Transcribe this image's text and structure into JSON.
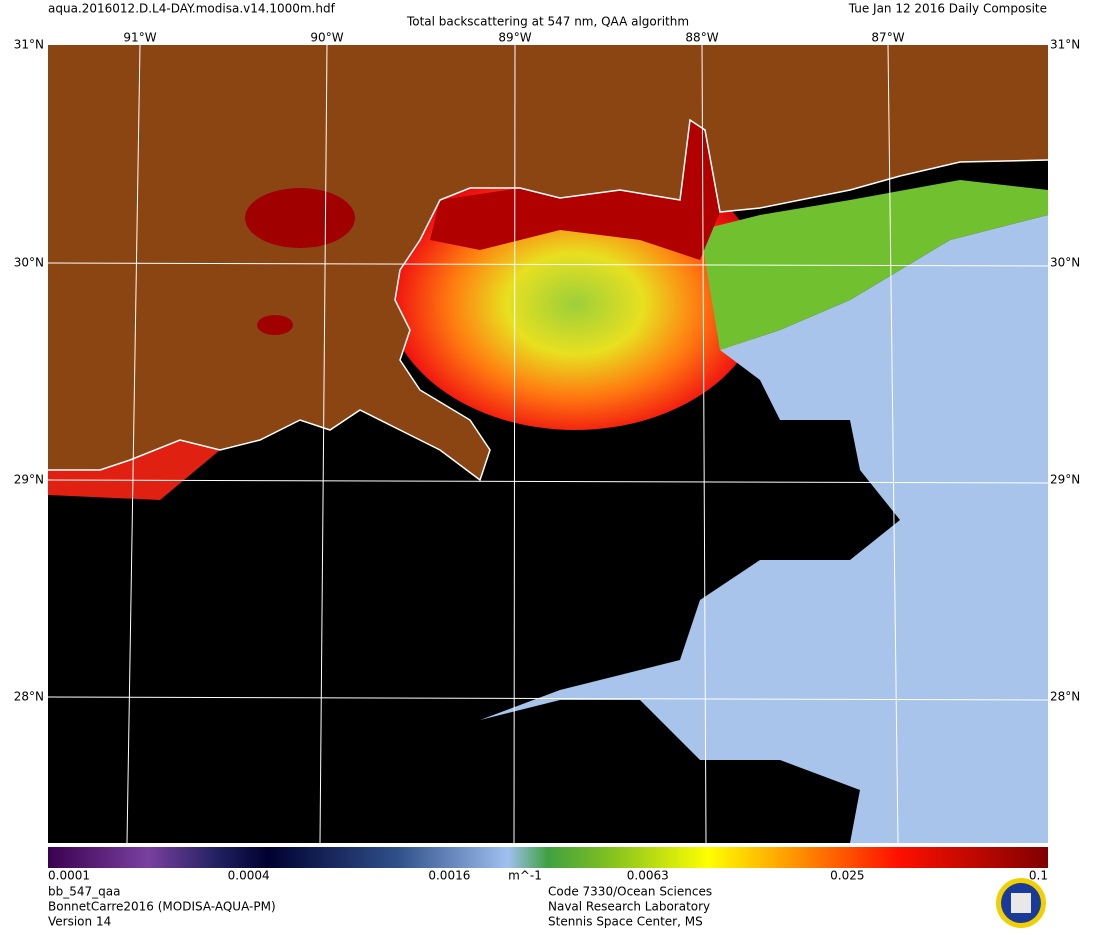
{
  "header": {
    "file": "aqua.2016012.D.L4-DAY.modisa.v14.1000m.hdf",
    "title": "Total backscattering at 547 nm, QAA algorithm",
    "date": "Tue Jan 12 2016 Daily Composite"
  },
  "map": {
    "lat_labels": [
      "31°N",
      "30°N",
      "29°N",
      "28°N"
    ],
    "lon_labels": [
      "91°W",
      "90°W",
      "89°W",
      "88°W",
      "87°W"
    ]
  },
  "colorbar": {
    "scale": "log",
    "range": [
      0.0001,
      0.1
    ],
    "ticks": [
      0.0001,
      0.0004,
      0.0016,
      0.0063,
      0.025,
      0.1
    ],
    "unit": "m^-1"
  },
  "footer": {
    "left": [
      "bb_547_qaa",
      "BonnetCarre2016 (MODISA-AQUA-PM)",
      "Version 14"
    ],
    "center": [
      "Code 7330/Ocean Sciences",
      "Naval Research Laboratory",
      "Stennis Space Center, MS"
    ]
  }
}
